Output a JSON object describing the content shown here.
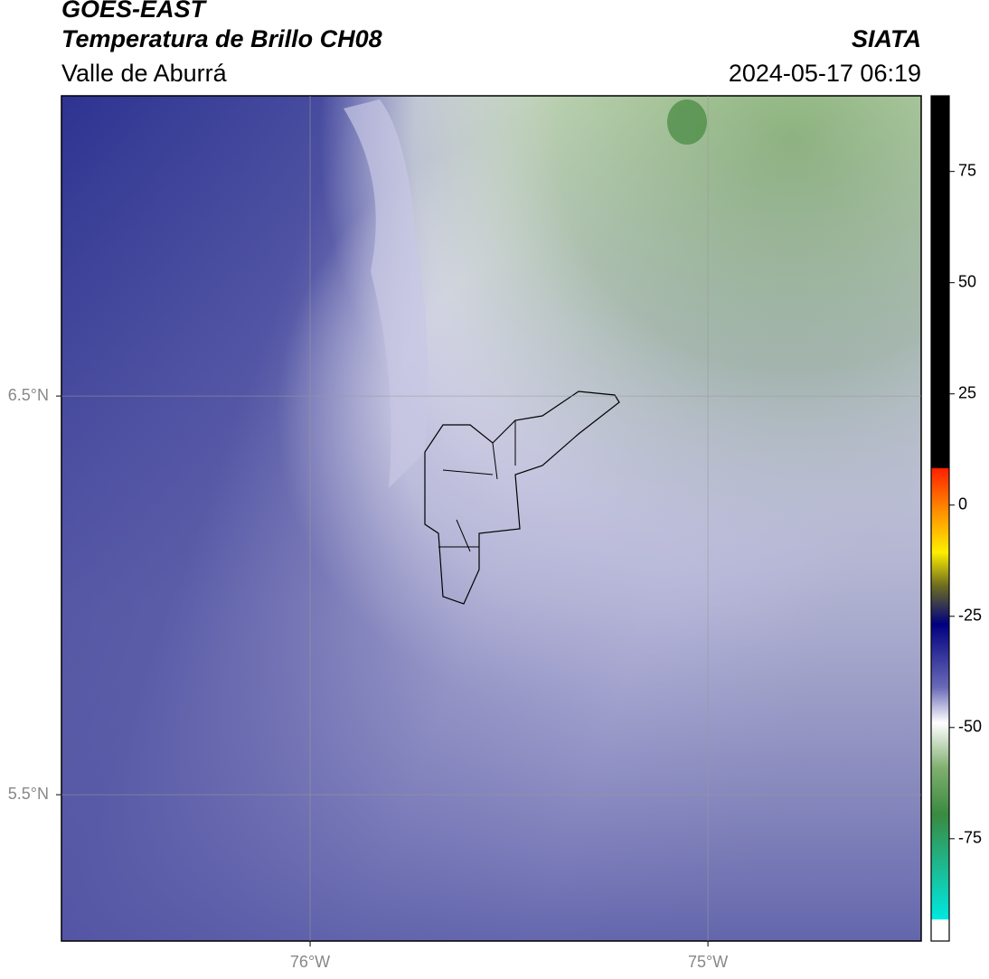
{
  "header": {
    "title": "GOES-EAST",
    "subtitle": "Temperatura de Brillo CH08",
    "region": "Valle de Aburrá",
    "source": "SIATA",
    "datetime": "2024-05-17 06:19"
  },
  "map": {
    "lon_lim": [
      -76.625,
      -74.464
    ],
    "lat_lim": [
      5.133,
      7.253
    ],
    "lon_ticks": [
      {
        "value": -76,
        "label": "76°W"
      },
      {
        "value": -75,
        "label": "75°W"
      }
    ],
    "lat_ticks": [
      {
        "value": 6.5,
        "label": "6.5°N"
      },
      {
        "value": 5.5,
        "label": "5.5°N"
      }
    ],
    "grid": true
  },
  "colorbar": {
    "lim": [
      -98,
      92
    ],
    "ticks": [
      75,
      50,
      25,
      0,
      -25,
      -50,
      -75
    ]
  }
}
